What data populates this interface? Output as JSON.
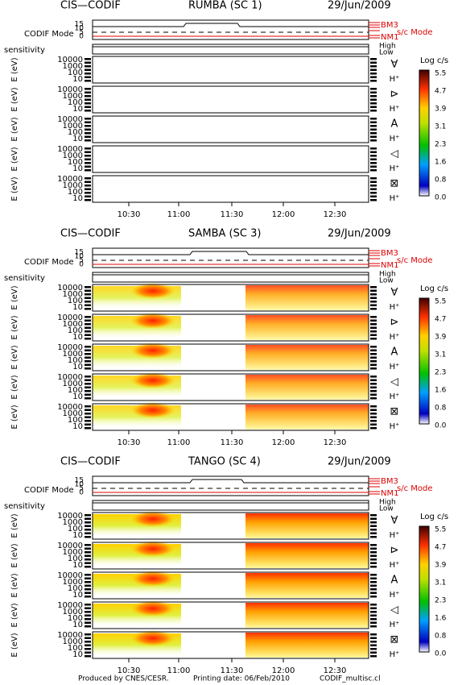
{
  "sections": [
    {
      "instrument": "CIS—CODIF",
      "spacecraft": "RUMBA (SC 1)",
      "date": "29/Jun/2009"
    },
    {
      "instrument": "CIS—CODIF",
      "spacecraft": "SAMBA (SC 3)",
      "date": "29/Jun/2009"
    },
    {
      "instrument": "CIS—CODIF",
      "spacecraft": "TANGO (SC 4)",
      "date": "29/Jun/2009"
    }
  ],
  "mode_label": "CODIF Mode",
  "mode_ticks": [
    "15",
    "10",
    "5",
    "0"
  ],
  "mode_names": [
    "BM3",
    "NM1"
  ],
  "mode_title": "s/c Mode",
  "sensitivity_label": "sensitivity",
  "sensitivity_levels": [
    "High",
    "Low"
  ],
  "energy_label": "E (eV)",
  "energy_ticks": [
    "10000",
    "1000",
    "100",
    "10"
  ],
  "directions": [
    "∀",
    "⊳",
    "A",
    "◁",
    "⊠"
  ],
  "species": "H⁺",
  "colorbar_title": "Log c/s",
  "colorbar_ticks": [
    "5.5",
    "4.7",
    "3.9",
    "3.1",
    "2.3",
    "1.6",
    "0.8",
    "0.0"
  ],
  "time_ticks": [
    "10:30",
    "11:00",
    "11:30",
    "12:00",
    "12:30"
  ],
  "footer": [
    "Produced by CNES/CESR.",
    "Printing date: 06/Feb/2010",
    "CODIF_multisc.cl"
  ]
}
